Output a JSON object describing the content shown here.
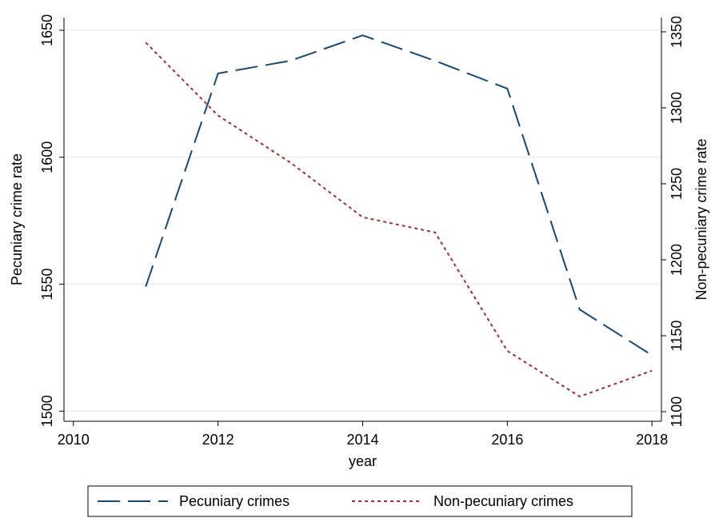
{
  "chart_data": {
    "type": "line",
    "x": [
      2011,
      2012,
      2013,
      2014,
      2015,
      2016,
      2017,
      2018
    ],
    "series": [
      {
        "name": "Pecuniary crimes",
        "color": "#1a476f",
        "values": [
          1549,
          1633,
          1638,
          1648,
          1638,
          1627,
          1540,
          1522
        ]
      },
      {
        "name": "Non-pecuniary crimes",
        "color": "#90353b",
        "axis": "y2",
        "values": [
          1343,
          1295,
          1264,
          1228,
          1218,
          1140,
          1110,
          1127
        ]
      }
    ],
    "x_label": "year",
    "y_label": "Pecuniary crime rate",
    "y2_label": "Non-pecuniary crime rate",
    "xlim": [
      2009.87,
      2018.13
    ],
    "xticks": [
      2010,
      2012,
      2014,
      2016,
      2018
    ],
    "ylim": [
      1496,
      1655
    ],
    "yticks": [
      1500,
      1550,
      1600,
      1650
    ],
    "y2lim": [
      1093.7,
      1359.4
    ],
    "y2ticks": [
      1100,
      1150,
      1200,
      1250,
      1300,
      1350
    ],
    "grid": true,
    "legend": "bottom"
  }
}
